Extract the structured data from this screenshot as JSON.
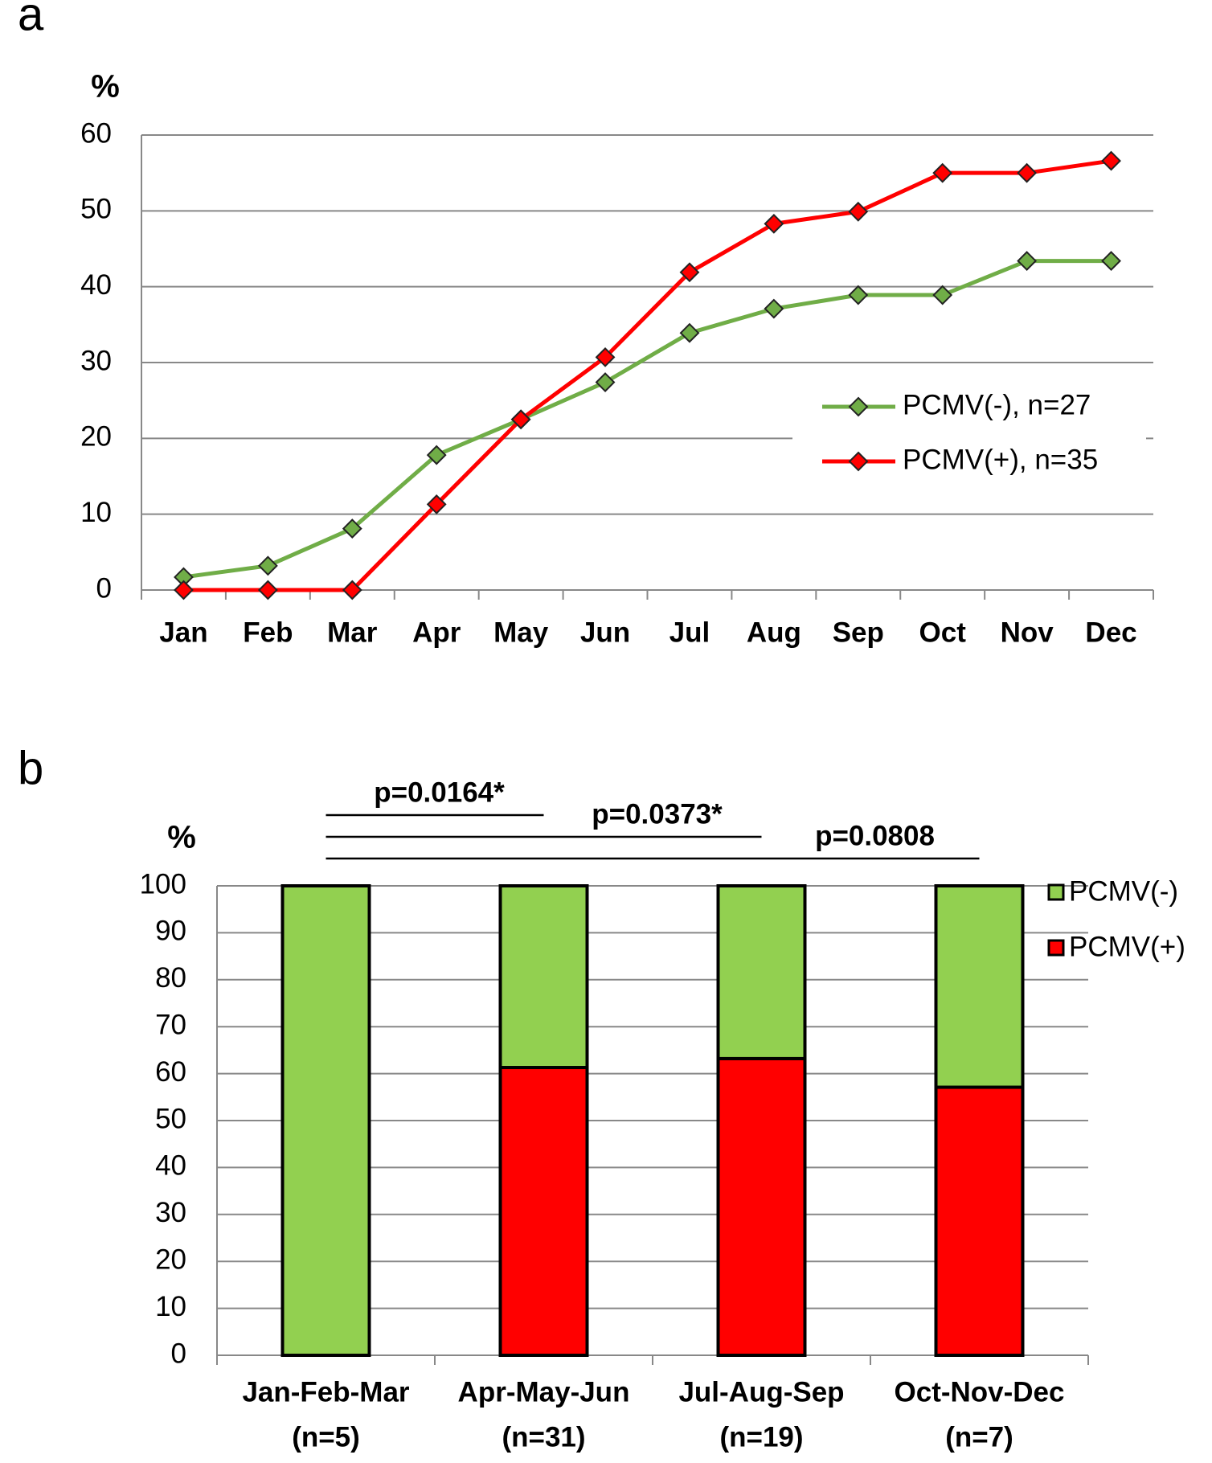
{
  "chart_data": [
    {
      "type": "line",
      "panel": "a",
      "y_label": "%",
      "categories": [
        "Jan",
        "Feb",
        "Mar",
        "Apr",
        "May",
        "Jun",
        "Jul",
        "Aug",
        "Sep",
        "Oct",
        "Nov",
        "Dec"
      ],
      "series": [
        {
          "name": "PCMV(-), n=27",
          "color": "#70ad47",
          "values": [
            1.7,
            3.2,
            8.1,
            17.8,
            22.5,
            27.4,
            33.9,
            37.1,
            38.9,
            38.9,
            43.4,
            43.4
          ]
        },
        {
          "name": "PCMV(+), n=35",
          "color": "#ff0000",
          "values": [
            0,
            0,
            0,
            11.3,
            22.5,
            30.7,
            41.9,
            48.3,
            49.9,
            55,
            55,
            56.6
          ]
        }
      ],
      "ylim": [
        0,
        60
      ],
      "yticks": [
        0,
        10,
        20,
        30,
        40,
        50,
        60
      ],
      "grid": true,
      "legend": "right"
    },
    {
      "type": "stacked_bar",
      "panel": "b",
      "y_label": "%",
      "categories": [
        "Jan-Feb-Mar",
        "Apr-May-Jun",
        "Jul-Aug-Sep",
        "Oct-Nov-Dec"
      ],
      "category_counts": [
        "(n=5)",
        "(n=31)",
        "(n=19)",
        "(n=7)"
      ],
      "series": [
        {
          "name": "PCMV(+)",
          "color": "#ff0000",
          "values": [
            0,
            61.3,
            63.2,
            57.1
          ]
        },
        {
          "name": "PCMV(-)",
          "color": "#92d050",
          "values": [
            100,
            38.7,
            36.8,
            42.9
          ]
        }
      ],
      "annotations": [
        "p=0.0164*",
        "p=0.0373*",
        "p=0.0808"
      ],
      "ylim": [
        0,
        100
      ],
      "yticks": [
        0,
        10,
        20,
        30,
        40,
        50,
        60,
        70,
        80,
        90,
        100
      ],
      "grid": true,
      "legend": "top-right"
    }
  ]
}
